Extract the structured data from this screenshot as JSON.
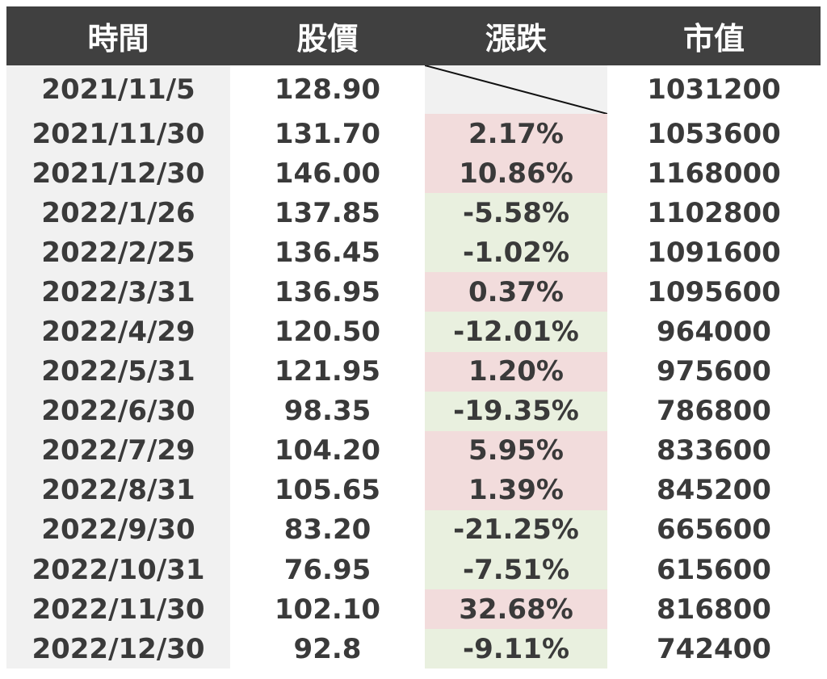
{
  "headers": {
    "date": "時間",
    "price": "股價",
    "change": "漲跌",
    "market_value": "市值"
  },
  "colors": {
    "header_bg": "#404040",
    "up": "#f2dcdc",
    "down": "#e9f0df",
    "neutral": "#f1f1f1"
  },
  "rows": [
    {
      "date": "2021/11/5",
      "price": "128.90",
      "change": "",
      "direction": "none",
      "market_value": "1031200"
    },
    {
      "date": "2021/11/30",
      "price": "131.70",
      "change": "2.17%",
      "direction": "up",
      "market_value": "1053600"
    },
    {
      "date": "2021/12/30",
      "price": "146.00",
      "change": "10.86%",
      "direction": "up",
      "market_value": "1168000"
    },
    {
      "date": "2022/1/26",
      "price": "137.85",
      "change": "-5.58%",
      "direction": "down",
      "market_value": "1102800"
    },
    {
      "date": "2022/2/25",
      "price": "136.45",
      "change": "-1.02%",
      "direction": "down",
      "market_value": "1091600"
    },
    {
      "date": "2022/3/31",
      "price": "136.95",
      "change": "0.37%",
      "direction": "up",
      "market_value": "1095600"
    },
    {
      "date": "2022/4/29",
      "price": "120.50",
      "change": "-12.01%",
      "direction": "down",
      "market_value": "964000"
    },
    {
      "date": "2022/5/31",
      "price": "121.95",
      "change": "1.20%",
      "direction": "up",
      "market_value": "975600"
    },
    {
      "date": "2022/6/30",
      "price": "98.35",
      "change": "-19.35%",
      "direction": "down",
      "market_value": "786800"
    },
    {
      "date": "2022/7/29",
      "price": "104.20",
      "change": "5.95%",
      "direction": "up",
      "market_value": "833600"
    },
    {
      "date": "2022/8/31",
      "price": "105.65",
      "change": "1.39%",
      "direction": "up",
      "market_value": "845200"
    },
    {
      "date": "2022/9/30",
      "price": "83.20",
      "change": "-21.25%",
      "direction": "down",
      "market_value": "665600"
    },
    {
      "date": "2022/10/31",
      "price": "76.95",
      "change": "-7.51%",
      "direction": "down",
      "market_value": "615600"
    },
    {
      "date": "2022/11/30",
      "price": "102.10",
      "change": "32.68%",
      "direction": "up",
      "market_value": "816800"
    },
    {
      "date": "2022/12/30",
      "price": "92.8",
      "change": "-9.11%",
      "direction": "down",
      "market_value": "742400"
    }
  ]
}
